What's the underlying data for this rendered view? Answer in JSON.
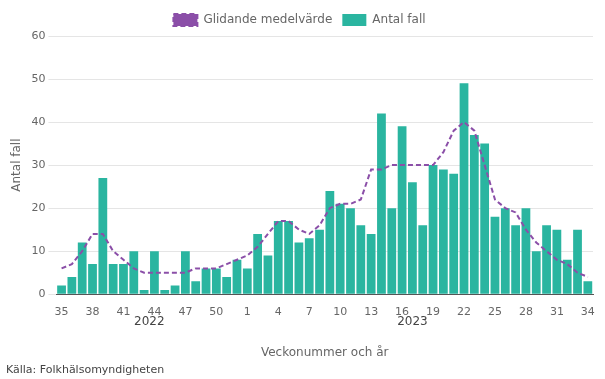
{
  "chart_data": {
    "type": "bar",
    "xlabel": "Veckonummer och år",
    "ylabel": "Antal fall",
    "source": "Källa: Folkhälsomyndigheten",
    "categories": [
      "35",
      null,
      null,
      "38",
      null,
      null,
      "41",
      null,
      null,
      "44",
      null,
      null,
      "47",
      null,
      null,
      "50",
      null,
      null,
      "1",
      null,
      null,
      "4",
      null,
      null,
      "7",
      null,
      null,
      "10",
      null,
      null,
      "13",
      null,
      null,
      "16",
      null,
      null,
      "19",
      null,
      null,
      "22",
      null,
      null,
      "25",
      null,
      null,
      "28",
      null,
      null,
      "31",
      null,
      null,
      "34"
    ],
    "series": [
      {
        "name": "Antal fall",
        "type": "bar",
        "color": "#2ab5a0",
        "values": [
          2,
          4,
          12,
          7,
          27,
          7,
          7,
          10,
          1,
          10,
          1,
          2,
          10,
          3,
          6,
          6,
          4,
          8,
          6,
          14,
          9,
          17,
          17,
          12,
          13,
          15,
          24,
          21,
          20,
          16,
          14,
          42,
          20,
          39,
          26,
          16,
          30,
          29,
          28,
          49,
          37,
          35,
          18,
          20,
          16,
          20,
          10,
          16,
          15,
          8,
          15,
          3
        ]
      },
      {
        "name": "Glidande medelvärde",
        "type": "line",
        "line_style": "dashed",
        "color": "#8b4fa8",
        "values": [
          6,
          7,
          10,
          14,
          14,
          10,
          8,
          6,
          5,
          5,
          5,
          5,
          5,
          6,
          6,
          6,
          7,
          8,
          9,
          11,
          14,
          17,
          17,
          15,
          14,
          16,
          20,
          21,
          21,
          22,
          29,
          29,
          30,
          30,
          30,
          30,
          30,
          33,
          38,
          40,
          38,
          30,
          22,
          20,
          19,
          15,
          12,
          10,
          8,
          7,
          5,
          4
        ]
      }
    ],
    "ylim": [
      0,
      60
    ],
    "yticks": [
      0,
      10,
      20,
      30,
      40,
      50,
      60
    ],
    "grid": true,
    "legend": "top",
    "annotations": [
      {
        "text": "2022",
        "x": 8.5
      },
      {
        "text": "2023",
        "x": 34.0
      }
    ]
  }
}
